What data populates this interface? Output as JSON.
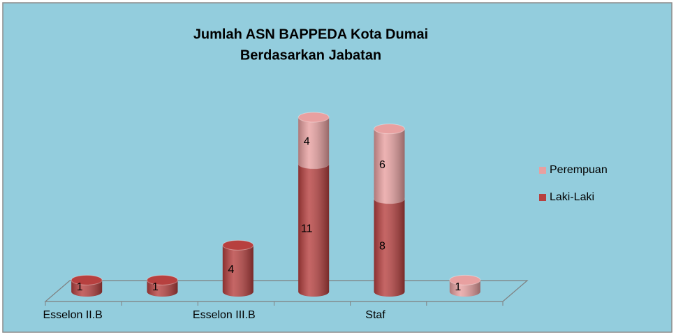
{
  "chart_data": {
    "type": "bar3d_stacked",
    "title": [
      "Jumlah ASN BAPPEDA Kota Dumai",
      "Berdasarkan Jabatan"
    ],
    "categories": [
      "Esselon II.B",
      null,
      "Esselon III.B",
      null,
      "Staf",
      null
    ],
    "series": [
      {
        "name": "Laki-Laki",
        "color": "#b7403f",
        "values": [
          1,
          1,
          4,
          11,
          8,
          null
        ]
      },
      {
        "name": "Perempuan",
        "color": "#e8a0a0",
        "values": [
          null,
          null,
          null,
          4,
          6,
          1
        ]
      }
    ],
    "legend": "right"
  }
}
